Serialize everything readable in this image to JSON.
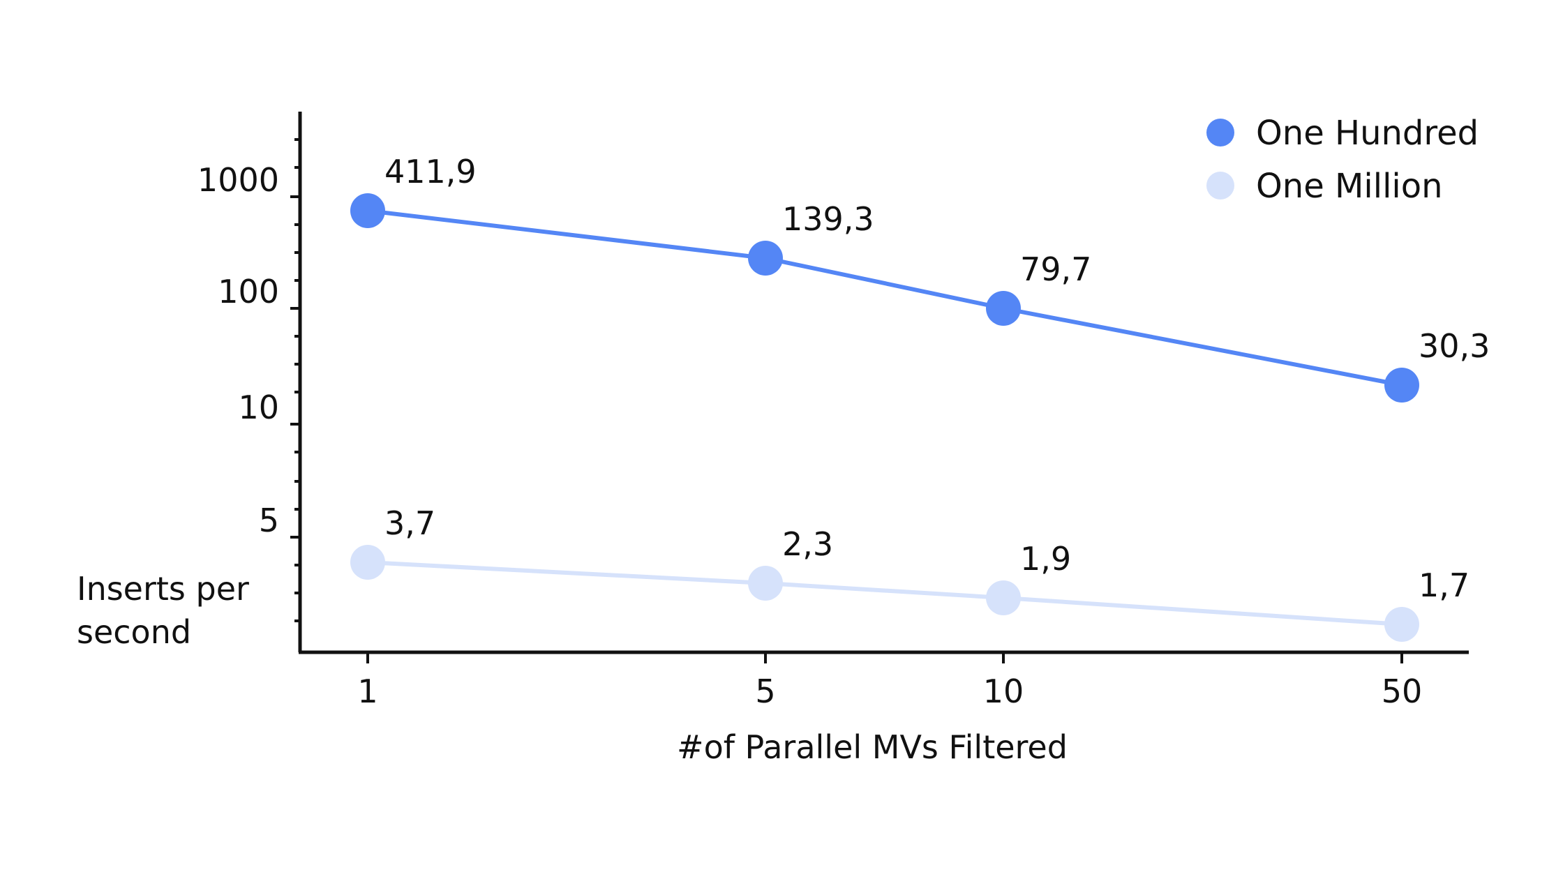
{
  "chart_data": {
    "type": "line",
    "title": "",
    "xlabel": "#of Parallel MVs Filtered",
    "ylabel_lines": [
      "Inserts per",
      "second"
    ],
    "categories": [
      "1",
      "5",
      "10",
      "50"
    ],
    "y_ticks": [
      "1000",
      "100",
      "10",
      "5"
    ],
    "y_scale": "log (non-uniform)",
    "grid": false,
    "legend_position": "top-right",
    "series": [
      {
        "name": "One Hundred",
        "color": "#5486f5",
        "values": [
          411.9,
          139.3,
          79.7,
          30.3
        ],
        "labels": [
          "411,9",
          "139,3",
          "79,7",
          "30,3"
        ]
      },
      {
        "name": "One Million",
        "color": "#d6e2fb",
        "values": [
          3.7,
          2.3,
          1.9,
          1.7
        ],
        "labels": [
          "3,7",
          "2,3",
          "1,9",
          "1,7"
        ]
      }
    ]
  }
}
